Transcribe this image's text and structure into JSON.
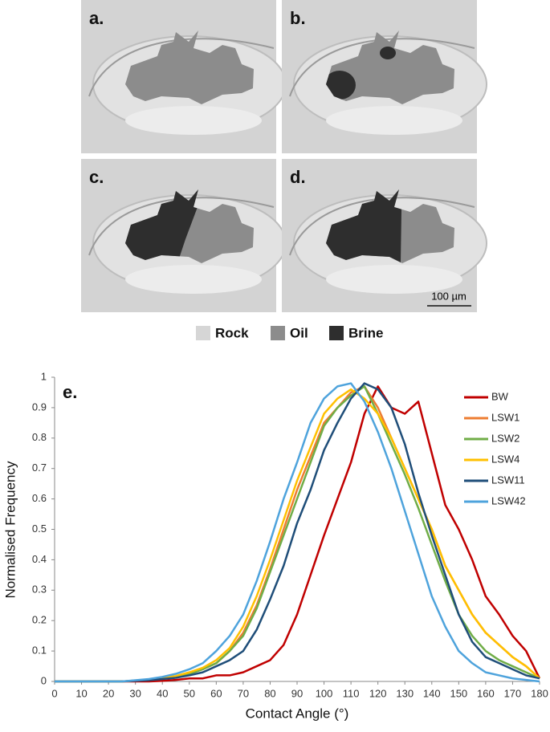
{
  "panels": [
    {
      "label": "a."
    },
    {
      "label": "b."
    },
    {
      "label": "c."
    },
    {
      "label": "d."
    }
  ],
  "scale_bar": "100 µm",
  "phase_legend": [
    "Rock",
    "Oil",
    "Brine"
  ],
  "chart_data": {
    "type": "line",
    "panel_label": "e.",
    "xlabel": "Contact Angle (°)",
    "ylabel": "Normalised Frequency",
    "x": [
      0,
      5,
      10,
      15,
      20,
      25,
      30,
      35,
      40,
      45,
      50,
      55,
      60,
      65,
      70,
      75,
      80,
      85,
      90,
      95,
      100,
      105,
      110,
      115,
      120,
      125,
      130,
      135,
      140,
      145,
      150,
      155,
      160,
      165,
      170,
      175,
      180
    ],
    "series": [
      {
        "name": "BW",
        "color": "#c00000",
        "values": [
          0,
          0,
          0,
          0,
          0,
          0,
          0,
          0,
          0.002,
          0.005,
          0.01,
          0.01,
          0.02,
          0.02,
          0.03,
          0.05,
          0.07,
          0.12,
          0.22,
          0.35,
          0.48,
          0.6,
          0.72,
          0.88,
          0.97,
          0.9,
          0.88,
          0.92,
          0.75,
          0.58,
          0.5,
          0.4,
          0.28,
          0.22,
          0.15,
          0.1,
          0.01
        ]
      },
      {
        "name": "LSW1",
        "color": "#ed7d31",
        "values": [
          0,
          0,
          0,
          0,
          0,
          0,
          0.003,
          0.005,
          0.01,
          0.015,
          0.025,
          0.04,
          0.06,
          0.1,
          0.16,
          0.25,
          0.37,
          0.5,
          0.63,
          0.74,
          0.85,
          0.9,
          0.95,
          0.97,
          0.9,
          0.8,
          0.7,
          0.6,
          0.5,
          0.38,
          0.3,
          0.22,
          0.16,
          0.12,
          0.08,
          0.05,
          0.01
        ]
      },
      {
        "name": "LSW2",
        "color": "#70ad47",
        "values": [
          0,
          0,
          0,
          0,
          0,
          0,
          0.003,
          0.005,
          0.01,
          0.015,
          0.025,
          0.04,
          0.06,
          0.1,
          0.15,
          0.24,
          0.36,
          0.48,
          0.6,
          0.72,
          0.84,
          0.9,
          0.94,
          0.97,
          0.88,
          0.78,
          0.68,
          0.57,
          0.45,
          0.33,
          0.22,
          0.15,
          0.1,
          0.07,
          0.05,
          0.03,
          0.01
        ]
      },
      {
        "name": "LSW4",
        "color": "#ffc000",
        "values": [
          0,
          0,
          0,
          0,
          0,
          0,
          0.003,
          0.006,
          0.012,
          0.018,
          0.03,
          0.045,
          0.07,
          0.11,
          0.18,
          0.28,
          0.4,
          0.53,
          0.66,
          0.77,
          0.88,
          0.93,
          0.96,
          0.93,
          0.88,
          0.8,
          0.7,
          0.6,
          0.5,
          0.38,
          0.3,
          0.22,
          0.16,
          0.12,
          0.08,
          0.05,
          0.01
        ]
      },
      {
        "name": "LSW11",
        "color": "#1f4e79",
        "values": [
          0,
          0,
          0,
          0,
          0,
          0,
          0.002,
          0.004,
          0.008,
          0.012,
          0.02,
          0.03,
          0.05,
          0.07,
          0.1,
          0.17,
          0.27,
          0.38,
          0.52,
          0.63,
          0.76,
          0.85,
          0.93,
          0.98,
          0.96,
          0.9,
          0.78,
          0.62,
          0.48,
          0.35,
          0.22,
          0.13,
          0.08,
          0.06,
          0.04,
          0.02,
          0.01
        ]
      },
      {
        "name": "LSW42",
        "color": "#4ea3dc",
        "values": [
          0,
          0,
          0,
          0,
          0,
          0,
          0.004,
          0.008,
          0.015,
          0.025,
          0.04,
          0.06,
          0.1,
          0.15,
          0.22,
          0.33,
          0.46,
          0.6,
          0.72,
          0.85,
          0.93,
          0.97,
          0.98,
          0.92,
          0.82,
          0.7,
          0.56,
          0.42,
          0.28,
          0.18,
          0.1,
          0.06,
          0.03,
          0.02,
          0.01,
          0.005,
          0
        ]
      }
    ],
    "xlim": [
      0,
      180
    ],
    "xticks": [
      0,
      10,
      20,
      30,
      40,
      50,
      60,
      70,
      80,
      90,
      100,
      110,
      120,
      130,
      140,
      150,
      160,
      170,
      180
    ],
    "ylim": [
      0,
      1
    ],
    "yticks": [
      0,
      0.1,
      0.2,
      0.3,
      0.4,
      0.5,
      0.6,
      0.7,
      0.8,
      0.9,
      1
    ],
    "grid": false,
    "legend": "right"
  }
}
